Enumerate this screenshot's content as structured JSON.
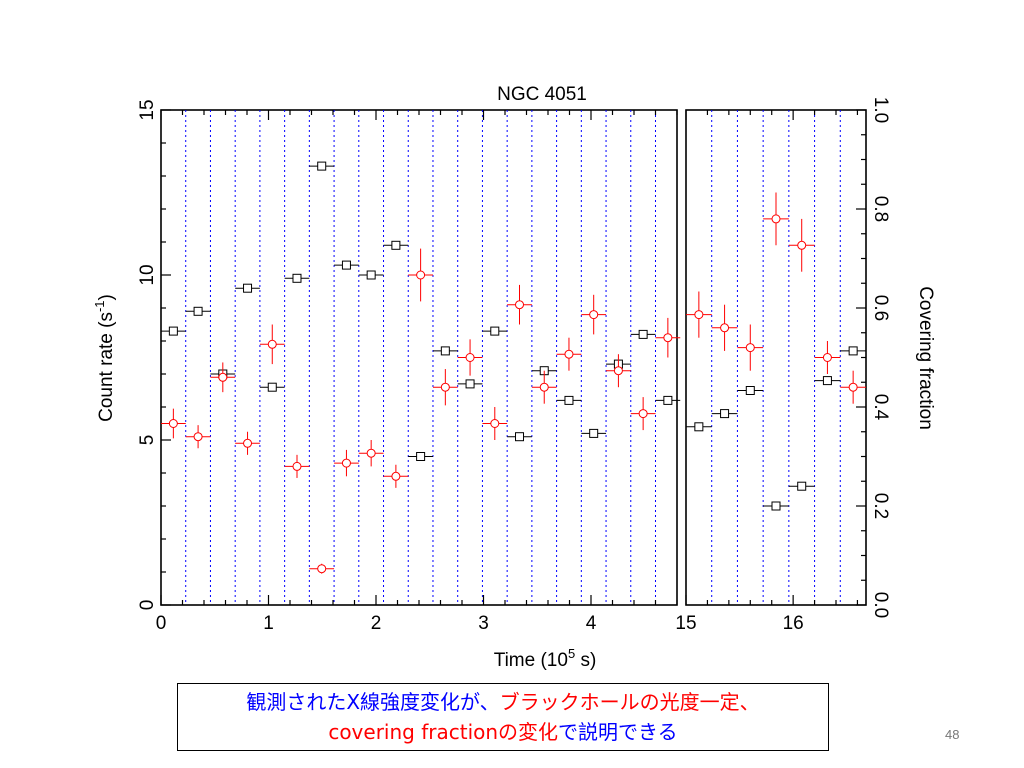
{
  "chart_data": {
    "type": "scatter",
    "title": "NGC 4051",
    "xlabel": "Time (10",
    "xlabel_sup": "5",
    "xlabel_tail": " s)",
    "ylabel": "Count rate (s",
    "ylabel_sup": "-1",
    "ylabel_tail": ")",
    "y2label": "Covering fraction",
    "ylim": [
      0,
      15
    ],
    "y2lim": [
      0,
      1
    ],
    "yticks": [
      "0",
      "5",
      "10",
      "15"
    ],
    "y2ticks": [
      "0.0",
      "0.2",
      "0.4",
      "0.6",
      "0.8",
      "1.0"
    ],
    "panels": [
      {
        "xlim": [
          0,
          4.8
        ],
        "xticks": [
          "0",
          "1",
          "2",
          "3",
          "4"
        ],
        "dividers": [
          0.23,
          0.46,
          0.69,
          0.92,
          1.15,
          1.38,
          1.61,
          1.84,
          2.07,
          2.3,
          2.53,
          2.76,
          2.99,
          3.22,
          3.45,
          3.68,
          3.91,
          4.14,
          4.37,
          4.6
        ],
        "series": [
          {
            "marker": "square",
            "color": "#000000",
            "axis": "left",
            "x": [
              0.115,
              0.345,
              0.575,
              0.805,
              1.035,
              1.265,
              1.495,
              1.725,
              1.955,
              2.185,
              2.415,
              2.645,
              2.875,
              3.105,
              3.335,
              3.565,
              3.795,
              4.025,
              4.255,
              4.485,
              4.715
            ],
            "y": [
              8.3,
              8.9,
              7.0,
              9.6,
              6.6,
              9.9,
              13.3,
              10.3,
              10.0,
              10.9,
              4.5,
              7.7,
              6.7,
              8.3,
              5.1,
              7.1,
              6.2,
              5.2,
              7.3,
              8.2,
              6.2
            ]
          },
          {
            "marker": "circle",
            "color": "#ff0000",
            "axis": "left",
            "x": [
              0.115,
              0.345,
              0.575,
              0.805,
              1.035,
              1.265,
              1.495,
              1.725,
              1.955,
              2.185,
              2.415,
              2.645,
              2.875,
              3.105,
              3.335,
              3.565,
              3.795,
              4.025,
              4.255,
              4.485,
              4.715
            ],
            "y": [
              5.5,
              5.1,
              6.9,
              4.9,
              7.9,
              4.2,
              1.1,
              4.3,
              4.6,
              3.9,
              10.0,
              6.6,
              7.5,
              5.5,
              9.1,
              6.6,
              7.6,
              8.8,
              7.1,
              5.8,
              8.1
            ],
            "yerr": [
              0.45,
              0.35,
              0.45,
              0.35,
              0.6,
              0.35,
              0.15,
              0.4,
              0.4,
              0.35,
              0.8,
              0.55,
              0.55,
              0.5,
              0.6,
              0.5,
              0.5,
              0.6,
              0.5,
              0.5,
              0.6
            ]
          }
        ]
      },
      {
        "xlim": [
          15,
          16.68
        ],
        "xticks": [
          "15",
          "16"
        ],
        "dividers": [
          15.24,
          15.48,
          15.72,
          15.96,
          16.2,
          16.44
        ],
        "series": [
          {
            "marker": "square",
            "color": "#000000",
            "axis": "left",
            "x": [
              15.12,
              15.36,
              15.6,
              15.84,
              16.08,
              16.32,
              16.56
            ],
            "y": [
              5.4,
              5.8,
              6.5,
              3.0,
              3.6,
              6.8,
              7.7
            ]
          },
          {
            "marker": "circle",
            "color": "#ff0000",
            "axis": "left",
            "x": [
              15.12,
              15.36,
              15.6,
              15.84,
              16.08,
              16.32,
              16.56
            ],
            "y": [
              8.8,
              8.4,
              7.8,
              11.7,
              10.9,
              7.5,
              6.6
            ],
            "yerr": [
              0.7,
              0.7,
              0.7,
              0.8,
              0.8,
              0.5,
              0.5
            ]
          }
        ]
      }
    ]
  },
  "caption": {
    "line1_blue": "観測されたX線強度変化が、",
    "line1_red": "ブラックホールの光度一定、",
    "line2_red": "covering fractionの変化",
    "line2_blue": "で説明できる"
  },
  "page_number": "48"
}
